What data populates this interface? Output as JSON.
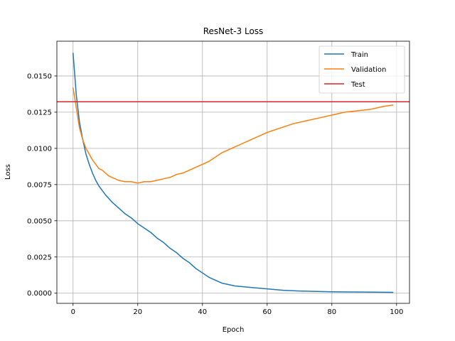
{
  "chart_data": {
    "type": "line",
    "title": "ResNet-3 Loss",
    "xlabel": "Epoch",
    "ylabel": "Loss",
    "xlim": [
      -5,
      104
    ],
    "ylim": [
      -0.0007,
      0.0174
    ],
    "xticks": [
      0,
      20,
      40,
      60,
      80,
      100
    ],
    "xtick_labels": [
      "0",
      "20",
      "40",
      "60",
      "80",
      "100"
    ],
    "yticks": [
      0.0,
      0.0025,
      0.005,
      0.0075,
      0.01,
      0.0125,
      0.015
    ],
    "ytick_labels": [
      "0.0000",
      "0.0025",
      "0.0050",
      "0.0075",
      "0.0100",
      "0.0125",
      "0.0150"
    ],
    "grid": true,
    "legend": "top-right",
    "series": [
      {
        "name": "Train",
        "color": "#1f77b4",
        "points": [
          [
            0,
            0.0166
          ],
          [
            1,
            0.0137
          ],
          [
            2,
            0.0118
          ],
          [
            3,
            0.0106
          ],
          [
            4,
            0.0096
          ],
          [
            5,
            0.0089
          ],
          [
            6,
            0.0083
          ],
          [
            7,
            0.0078
          ],
          [
            8,
            0.0074
          ],
          [
            9,
            0.0071
          ],
          [
            10,
            0.0068
          ],
          [
            12,
            0.0063
          ],
          [
            14,
            0.0059
          ],
          [
            16,
            0.0055
          ],
          [
            18,
            0.0052
          ],
          [
            20,
            0.0048
          ],
          [
            22,
            0.0045
          ],
          [
            24,
            0.0042
          ],
          [
            26,
            0.0038
          ],
          [
            28,
            0.0035
          ],
          [
            30,
            0.0031
          ],
          [
            32,
            0.0028
          ],
          [
            34,
            0.0024
          ],
          [
            36,
            0.0021
          ],
          [
            38,
            0.0017
          ],
          [
            40,
            0.0014
          ],
          [
            42,
            0.0011
          ],
          [
            44,
            0.0009
          ],
          [
            46,
            0.0007
          ],
          [
            48,
            0.0006
          ],
          [
            50,
            0.0005
          ],
          [
            55,
            0.0004
          ],
          [
            60,
            0.0003
          ],
          [
            65,
            0.0002
          ],
          [
            70,
            0.00015
          ],
          [
            80,
            0.0001
          ],
          [
            90,
            8e-05
          ],
          [
            99,
            6e-05
          ]
        ]
      },
      {
        "name": "Validation",
        "color": "#ff7f0e",
        "points": [
          [
            0,
            0.0142
          ],
          [
            1,
            0.0128
          ],
          [
            2,
            0.0114
          ],
          [
            3,
            0.0106
          ],
          [
            4,
            0.01
          ],
          [
            5,
            0.0096
          ],
          [
            6,
            0.0092
          ],
          [
            7,
            0.0089
          ],
          [
            8,
            0.0086
          ],
          [
            9,
            0.0085
          ],
          [
            10,
            0.0083
          ],
          [
            11,
            0.0081
          ],
          [
            12,
            0.008
          ],
          [
            14,
            0.0078
          ],
          [
            16,
            0.0077
          ],
          [
            18,
            0.0077
          ],
          [
            20,
            0.0076
          ],
          [
            22,
            0.0077
          ],
          [
            24,
            0.0077
          ],
          [
            26,
            0.0078
          ],
          [
            28,
            0.0079
          ],
          [
            30,
            0.008
          ],
          [
            32,
            0.0082
          ],
          [
            34,
            0.0083
          ],
          [
            36,
            0.0085
          ],
          [
            38,
            0.0087
          ],
          [
            40,
            0.0089
          ],
          [
            42,
            0.0091
          ],
          [
            44,
            0.0094
          ],
          [
            46,
            0.0097
          ],
          [
            48,
            0.0099
          ],
          [
            50,
            0.0101
          ],
          [
            52,
            0.0103
          ],
          [
            54,
            0.0105
          ],
          [
            56,
            0.0107
          ],
          [
            58,
            0.0109
          ],
          [
            60,
            0.0111
          ],
          [
            64,
            0.0114
          ],
          [
            68,
            0.0117
          ],
          [
            72,
            0.0119
          ],
          [
            76,
            0.0121
          ],
          [
            80,
            0.0123
          ],
          [
            84,
            0.0125
          ],
          [
            88,
            0.0126
          ],
          [
            92,
            0.0127
          ],
          [
            96,
            0.0129
          ],
          [
            99,
            0.013
          ]
        ]
      },
      {
        "name": "Test",
        "color": "#d62728",
        "hline": 0.01322
      }
    ]
  }
}
